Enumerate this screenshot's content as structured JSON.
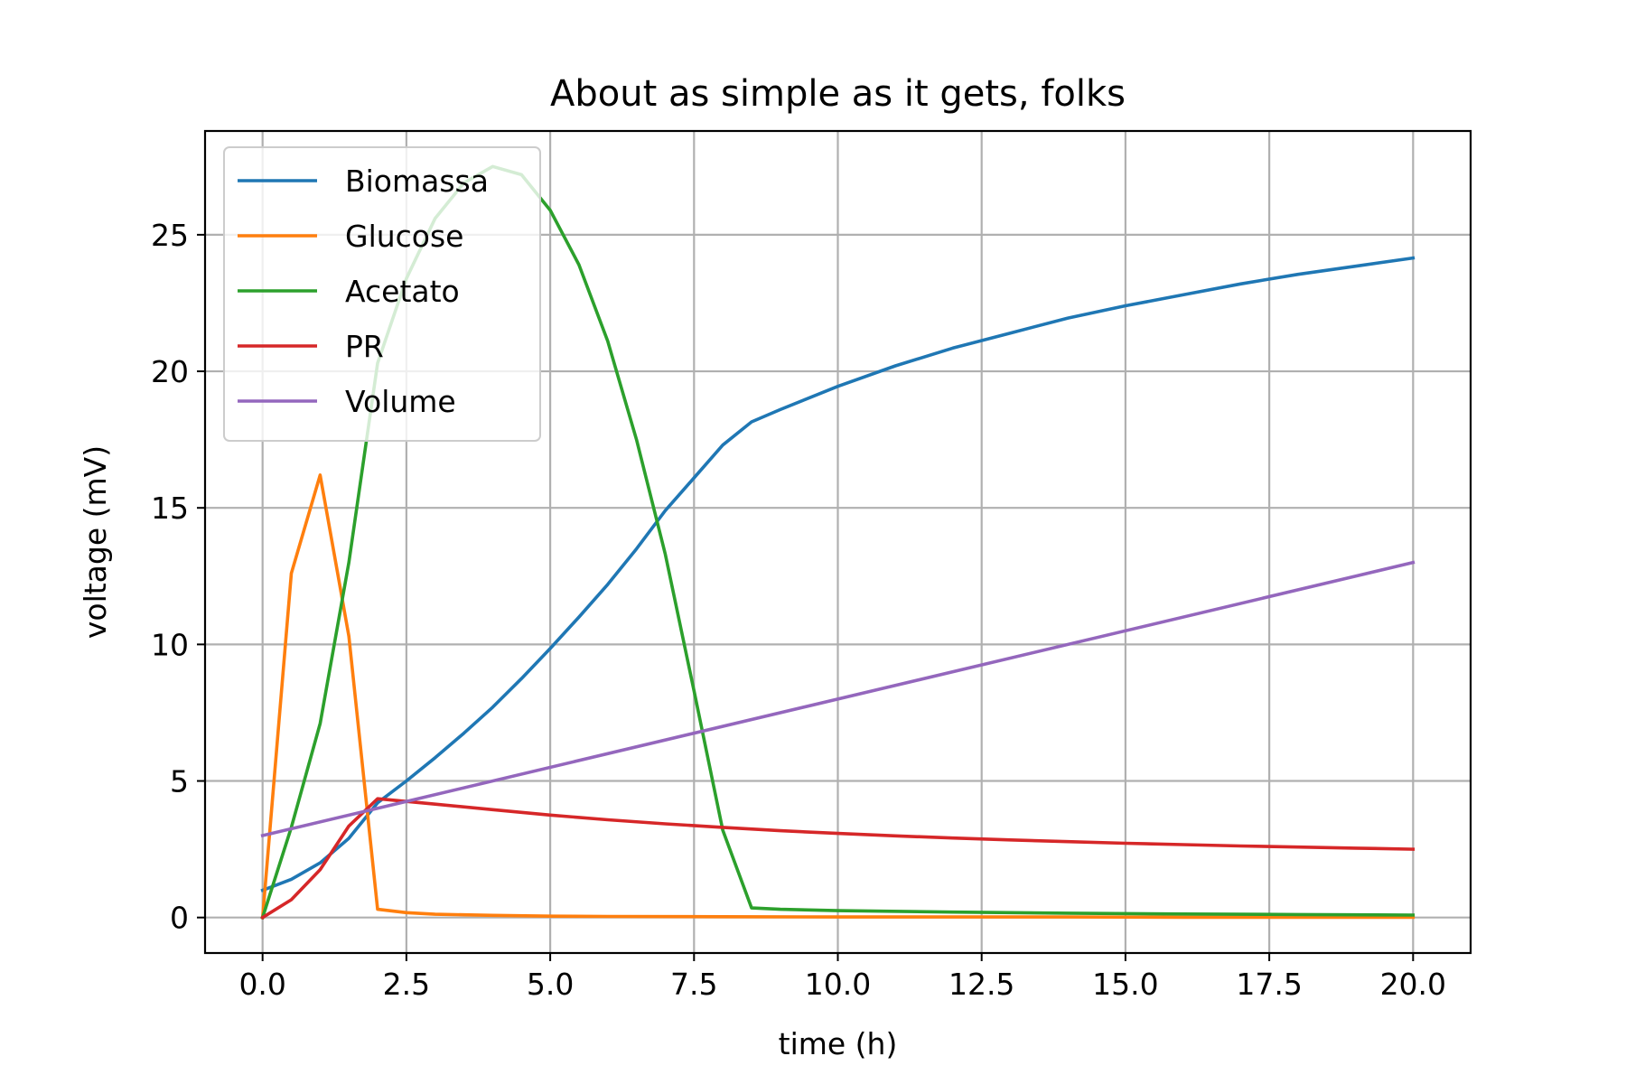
{
  "chart_data": {
    "type": "line",
    "title": "About as simple as it gets, folks",
    "xlabel": "time (h)",
    "ylabel": "voltage (mV)",
    "xlim": [
      -1.0,
      21.0
    ],
    "ylim": [
      -1.3,
      28.8
    ],
    "xticks": [
      0.0,
      2.5,
      5.0,
      7.5,
      10.0,
      12.5,
      15.0,
      17.5,
      20.0
    ],
    "xtick_labels": [
      "0.0",
      "2.5",
      "5.0",
      "7.5",
      "10.0",
      "12.5",
      "15.0",
      "17.5",
      "20.0"
    ],
    "yticks": [
      0,
      5,
      10,
      15,
      20,
      25
    ],
    "ytick_labels": [
      "0",
      "5",
      "10",
      "15",
      "20",
      "25"
    ],
    "grid": true,
    "legend_position": "top-left",
    "series": [
      {
        "name": "Biomassa",
        "color": "#1f77b4",
        "x": [
          0,
          0.5,
          1,
          1.5,
          2,
          2.5,
          3,
          3.5,
          4,
          4.5,
          5,
          5.5,
          6,
          6.5,
          7,
          7.5,
          8,
          8.5,
          9,
          10,
          11,
          12,
          13,
          14,
          15,
          16,
          17,
          18,
          19,
          20
        ],
        "y": [
          1.0,
          1.4,
          2.0,
          2.9,
          4.2,
          5.0,
          5.85,
          6.75,
          7.7,
          8.75,
          9.85,
          11.0,
          12.2,
          13.5,
          14.9,
          16.1,
          17.3,
          18.15,
          18.6,
          19.45,
          20.2,
          20.85,
          21.4,
          21.95,
          22.4,
          22.8,
          23.2,
          23.55,
          23.85,
          24.15
        ]
      },
      {
        "name": "Glucose",
        "color": "#ff7f0e",
        "x": [
          0,
          0.5,
          1,
          1.5,
          2,
          2.5,
          3,
          4,
          5,
          6,
          8,
          10,
          12,
          14,
          16,
          18,
          20
        ],
        "y": [
          0,
          12.6,
          16.2,
          10.3,
          0.3,
          0.18,
          0.12,
          0.08,
          0.05,
          0.04,
          0.03,
          0.02,
          0.02,
          0.02,
          0.01,
          0.01,
          0.01
        ]
      },
      {
        "name": "Acetato",
        "color": "#2ca02c",
        "x": [
          0,
          0.5,
          1,
          1.5,
          2,
          2.5,
          3,
          3.5,
          4,
          4.5,
          5,
          5.5,
          6,
          6.5,
          7,
          7.5,
          8,
          8.5,
          9,
          10,
          12,
          14,
          16,
          18,
          20
        ],
        "y": [
          0,
          3.3,
          7.1,
          13.0,
          20.3,
          23.4,
          25.6,
          26.9,
          27.5,
          27.2,
          25.9,
          23.9,
          21.1,
          17.5,
          13.3,
          8.3,
          3.2,
          0.35,
          0.3,
          0.25,
          0.2,
          0.16,
          0.13,
          0.11,
          0.09
        ]
      },
      {
        "name": "PR",
        "color": "#d62728",
        "x": [
          0,
          0.5,
          1,
          1.5,
          2,
          3,
          4,
          5,
          6,
          7,
          8,
          9,
          10,
          11,
          12,
          13,
          14,
          15,
          16,
          17,
          18,
          19,
          20
        ],
        "y": [
          0,
          0.65,
          1.75,
          3.35,
          4.35,
          4.15,
          3.95,
          3.75,
          3.58,
          3.43,
          3.3,
          3.18,
          3.08,
          2.99,
          2.91,
          2.84,
          2.78,
          2.72,
          2.67,
          2.62,
          2.58,
          2.54,
          2.5
        ]
      },
      {
        "name": "Volume",
        "color": "#9467bd",
        "x": [
          0,
          20
        ],
        "y": [
          3.0,
          13.0
        ]
      }
    ]
  }
}
